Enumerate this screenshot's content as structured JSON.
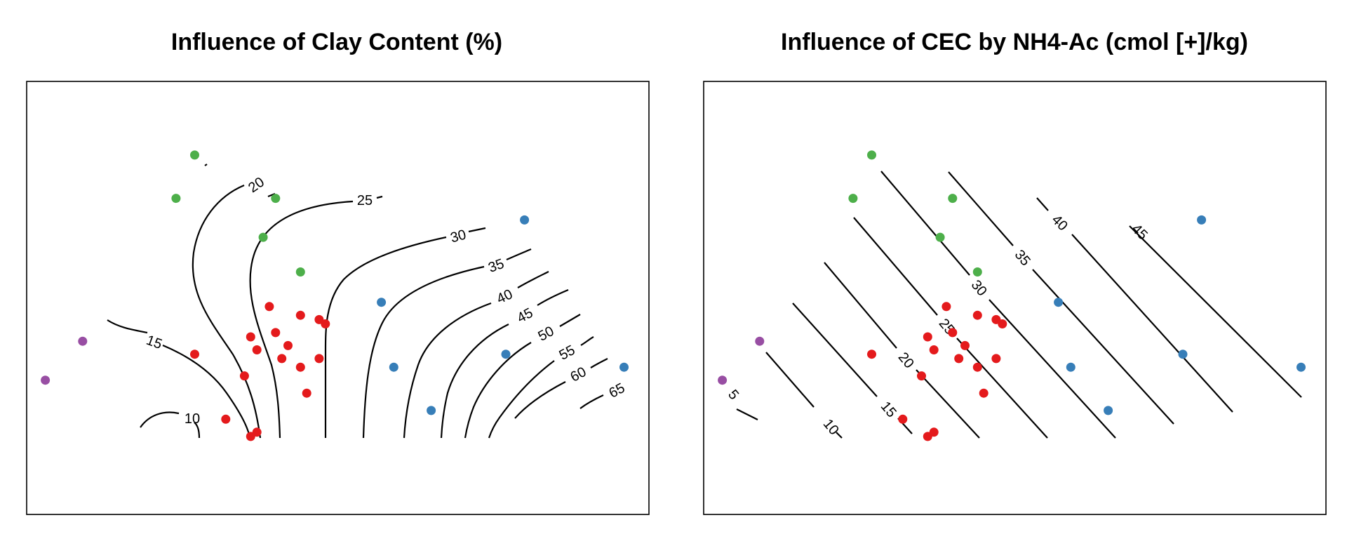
{
  "chart_data": [
    {
      "type": "scatter",
      "title": "Influence of Clay Content (%)",
      "xlabel": "",
      "ylabel": "",
      "grid": false,
      "colors": {
        "red": "#e41a1c",
        "green": "#4daf4a",
        "blue": "#377eb8",
        "purple": "#984ea3"
      },
      "contour_levels": [
        "10",
        "15",
        "20",
        "25",
        "30",
        "35",
        "40",
        "45",
        "50",
        "55",
        "60",
        "65"
      ],
      "points": [
        {
          "x": 0.03,
          "y": 0.31,
          "color": "purple"
        },
        {
          "x": 0.09,
          "y": 0.4,
          "color": "purple"
        },
        {
          "x": 0.27,
          "y": 0.83,
          "color": "green"
        },
        {
          "x": 0.24,
          "y": 0.73,
          "color": "green"
        },
        {
          "x": 0.4,
          "y": 0.73,
          "color": "green"
        },
        {
          "x": 0.38,
          "y": 0.64,
          "color": "green"
        },
        {
          "x": 0.44,
          "y": 0.56,
          "color": "green"
        },
        {
          "x": 0.27,
          "y": 0.37,
          "color": "red"
        },
        {
          "x": 0.32,
          "y": 0.22,
          "color": "red"
        },
        {
          "x": 0.37,
          "y": 0.19,
          "color": "red"
        },
        {
          "x": 0.36,
          "y": 0.18,
          "color": "red"
        },
        {
          "x": 0.35,
          "y": 0.32,
          "color": "red"
        },
        {
          "x": 0.36,
          "y": 0.41,
          "color": "red"
        },
        {
          "x": 0.37,
          "y": 0.38,
          "color": "red"
        },
        {
          "x": 0.39,
          "y": 0.48,
          "color": "red"
        },
        {
          "x": 0.4,
          "y": 0.42,
          "color": "red"
        },
        {
          "x": 0.42,
          "y": 0.39,
          "color": "red"
        },
        {
          "x": 0.41,
          "y": 0.36,
          "color": "red"
        },
        {
          "x": 0.44,
          "y": 0.46,
          "color": "red"
        },
        {
          "x": 0.44,
          "y": 0.34,
          "color": "red"
        },
        {
          "x": 0.45,
          "y": 0.28,
          "color": "red"
        },
        {
          "x": 0.47,
          "y": 0.36,
          "color": "red"
        },
        {
          "x": 0.47,
          "y": 0.45,
          "color": "red"
        },
        {
          "x": 0.48,
          "y": 0.44,
          "color": "red"
        },
        {
          "x": 0.57,
          "y": 0.49,
          "color": "blue"
        },
        {
          "x": 0.59,
          "y": 0.34,
          "color": "blue"
        },
        {
          "x": 0.65,
          "y": 0.24,
          "color": "blue"
        },
        {
          "x": 0.77,
          "y": 0.37,
          "color": "blue"
        },
        {
          "x": 0.8,
          "y": 0.68,
          "color": "blue"
        },
        {
          "x": 0.96,
          "y": 0.34,
          "color": "blue"
        }
      ]
    },
    {
      "type": "scatter",
      "title": "Influence of CEC by NH4-Ac (cmol [+]/kg)",
      "xlabel": "",
      "ylabel": "",
      "grid": false,
      "colors": {
        "red": "#e41a1c",
        "green": "#4daf4a",
        "blue": "#377eb8",
        "purple": "#984ea3"
      },
      "contour_levels": [
        "5",
        "10",
        "15",
        "20",
        "25",
        "30",
        "35",
        "40",
        "45"
      ],
      "points": [
        {
          "x": 0.03,
          "y": 0.31,
          "color": "purple"
        },
        {
          "x": 0.09,
          "y": 0.4,
          "color": "purple"
        },
        {
          "x": 0.27,
          "y": 0.83,
          "color": "green"
        },
        {
          "x": 0.24,
          "y": 0.73,
          "color": "green"
        },
        {
          "x": 0.4,
          "y": 0.73,
          "color": "green"
        },
        {
          "x": 0.38,
          "y": 0.64,
          "color": "green"
        },
        {
          "x": 0.44,
          "y": 0.56,
          "color": "green"
        },
        {
          "x": 0.27,
          "y": 0.37,
          "color": "red"
        },
        {
          "x": 0.32,
          "y": 0.22,
          "color": "red"
        },
        {
          "x": 0.37,
          "y": 0.19,
          "color": "red"
        },
        {
          "x": 0.36,
          "y": 0.18,
          "color": "red"
        },
        {
          "x": 0.35,
          "y": 0.32,
          "color": "red"
        },
        {
          "x": 0.36,
          "y": 0.41,
          "color": "red"
        },
        {
          "x": 0.37,
          "y": 0.38,
          "color": "red"
        },
        {
          "x": 0.39,
          "y": 0.48,
          "color": "red"
        },
        {
          "x": 0.4,
          "y": 0.42,
          "color": "red"
        },
        {
          "x": 0.42,
          "y": 0.39,
          "color": "red"
        },
        {
          "x": 0.41,
          "y": 0.36,
          "color": "red"
        },
        {
          "x": 0.44,
          "y": 0.46,
          "color": "red"
        },
        {
          "x": 0.44,
          "y": 0.34,
          "color": "red"
        },
        {
          "x": 0.45,
          "y": 0.28,
          "color": "red"
        },
        {
          "x": 0.47,
          "y": 0.36,
          "color": "red"
        },
        {
          "x": 0.47,
          "y": 0.45,
          "color": "red"
        },
        {
          "x": 0.48,
          "y": 0.44,
          "color": "red"
        },
        {
          "x": 0.57,
          "y": 0.49,
          "color": "blue"
        },
        {
          "x": 0.59,
          "y": 0.34,
          "color": "blue"
        },
        {
          "x": 0.65,
          "y": 0.24,
          "color": "blue"
        },
        {
          "x": 0.77,
          "y": 0.37,
          "color": "blue"
        },
        {
          "x": 0.8,
          "y": 0.68,
          "color": "blue"
        },
        {
          "x": 0.96,
          "y": 0.34,
          "color": "blue"
        }
      ]
    }
  ]
}
